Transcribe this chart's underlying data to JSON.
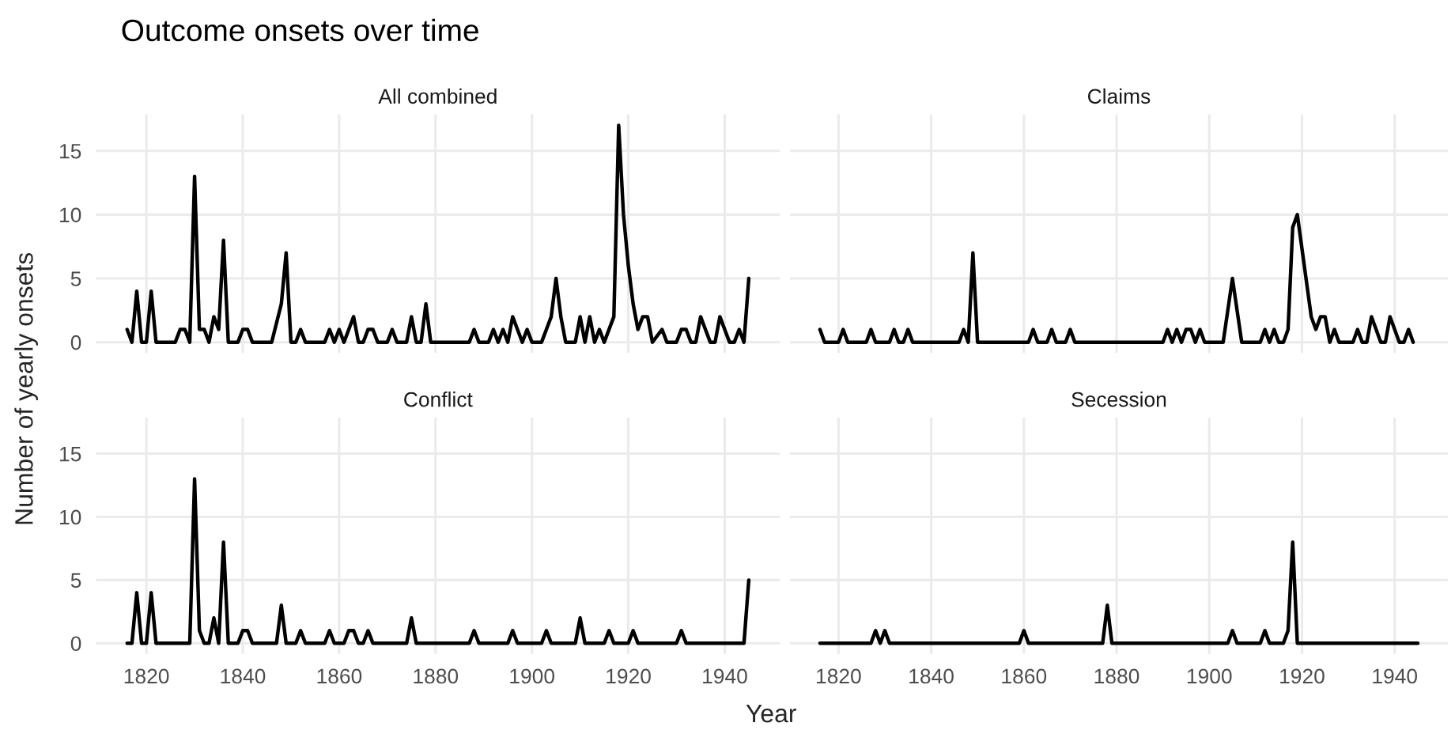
{
  "chart_data": [
    {
      "type": "line",
      "title": "Outcome onsets over time",
      "subtitle": "All combined",
      "ylabel": "Number of yearly onsets",
      "xlim": [
        1809.55,
        1951.45
      ],
      "xticks": [
        1820,
        1840,
        1860,
        1880,
        1900,
        1920,
        1940
      ],
      "ylim": [
        -0.85,
        17.85
      ],
      "yticks": [
        0,
        5,
        10,
        15
      ],
      "grid": true,
      "tick_labels": "y",
      "series": [
        {
          "color": "#000000",
          "x": [
            1816,
            1817,
            1818,
            1819,
            1820,
            1821,
            1822,
            1826,
            1827,
            1828,
            1829,
            1830,
            1831,
            1832,
            1833,
            1834,
            1835,
            1836,
            1837,
            1839,
            1840,
            1841,
            1842,
            1846,
            1848,
            1849,
            1850,
            1851,
            1852,
            1853,
            1857,
            1858,
            1859,
            1860,
            1861,
            1862,
            1863,
            1864,
            1865,
            1866,
            1867,
            1868,
            1870,
            1871,
            1872,
            1874,
            1875,
            1876,
            1877,
            1878,
            1879,
            1887,
            1888,
            1889,
            1891,
            1892,
            1893,
            1894,
            1895,
            1896,
            1897,
            1898,
            1899,
            1900,
            1902,
            1903,
            1904,
            1905,
            1906,
            1907,
            1909,
            1910,
            1911,
            1912,
            1913,
            1914,
            1915,
            1917,
            1918,
            1919,
            1920,
            1921,
            1922,
            1923,
            1924,
            1925,
            1927,
            1928,
            1930,
            1931,
            1932,
            1933,
            1934,
            1935,
            1936,
            1937,
            1938,
            1939,
            1940,
            1941,
            1942,
            1943,
            1944,
            1945
          ],
          "values": [
            1,
            0,
            4,
            0,
            0,
            4,
            0,
            0,
            1,
            1,
            0,
            13,
            1,
            1,
            0,
            2,
            1,
            8,
            0,
            0,
            1,
            1,
            0,
            0,
            3,
            7,
            0,
            0,
            1,
            0,
            0,
            1,
            0,
            1,
            0,
            1,
            2,
            0,
            0,
            1,
            1,
            0,
            0,
            1,
            0,
            0,
            2,
            0,
            0,
            3,
            0,
            0,
            1,
            0,
            0,
            1,
            0,
            1,
            0,
            2,
            1,
            0,
            1,
            0,
            0,
            1,
            2,
            5,
            2,
            0,
            0,
            2,
            0,
            2,
            0,
            1,
            0,
            2,
            17,
            10,
            6,
            3,
            1,
            2,
            2,
            0,
            1,
            0,
            0,
            1,
            1,
            0,
            0,
            2,
            1,
            0,
            0,
            2,
            1,
            0,
            0,
            1,
            0,
            5
          ]
        }
      ]
    },
    {
      "type": "line",
      "subtitle": "Claims",
      "xlim": [
        1809.55,
        1951.45
      ],
      "xticks": [
        1820,
        1840,
        1860,
        1880,
        1900,
        1920,
        1940
      ],
      "ylim": [
        -0.85,
        17.85
      ],
      "yticks": [
        0,
        5,
        10,
        15
      ],
      "grid": true,
      "tick_labels": false,
      "series": [
        {
          "color": "#000000",
          "x": [
            1816,
            1817,
            1820,
            1821,
            1822,
            1826,
            1827,
            1828,
            1831,
            1832,
            1833,
            1834,
            1835,
            1836,
            1846,
            1847,
            1848,
            1849,
            1850,
            1861,
            1862,
            1863,
            1865,
            1866,
            1867,
            1869,
            1870,
            1871,
            1890,
            1891,
            1892,
            1893,
            1894,
            1895,
            1896,
            1897,
            1898,
            1899,
            1903,
            1905,
            1907,
            1911,
            1912,
            1913,
            1914,
            1915,
            1916,
            1917,
            1918,
            1919,
            1922,
            1923,
            1924,
            1925,
            1926,
            1927,
            1928,
            1931,
            1932,
            1933,
            1934,
            1935,
            1936,
            1937,
            1938,
            1939,
            1940,
            1941,
            1942,
            1943,
            1944
          ],
          "values": [
            1,
            0,
            0,
            1,
            0,
            0,
            1,
            0,
            0,
            1,
            0,
            0,
            1,
            0,
            0,
            1,
            0,
            7,
            0,
            0,
            1,
            0,
            0,
            1,
            0,
            0,
            1,
            0,
            0,
            1,
            0,
            1,
            0,
            1,
            1,
            0,
            1,
            0,
            0,
            5,
            0,
            0,
            1,
            0,
            1,
            0,
            0,
            1,
            9,
            10,
            2,
            1,
            2,
            2,
            0,
            1,
            0,
            0,
            1,
            0,
            0,
            2,
            1,
            0,
            0,
            2,
            1,
            0,
            0,
            1,
            0
          ]
        }
      ]
    },
    {
      "type": "line",
      "subtitle": "Conflict",
      "xlabel": "Year",
      "xlim": [
        1809.55,
        1951.45
      ],
      "xticks": [
        1820,
        1840,
        1860,
        1880,
        1900,
        1920,
        1940
      ],
      "ylim": [
        -0.85,
        17.85
      ],
      "yticks": [
        0,
        5,
        10,
        15
      ],
      "grid": true,
      "series": [
        {
          "color": "#000000",
          "x": [
            1816,
            1817,
            1818,
            1819,
            1820,
            1821,
            1822,
            1829,
            1830,
            1831,
            1832,
            1833,
            1834,
            1835,
            1836,
            1837,
            1839,
            1840,
            1841,
            1842,
            1847,
            1848,
            1849,
            1851,
            1852,
            1853,
            1857,
            1858,
            1859,
            1861,
            1862,
            1863,
            1864,
            1865,
            1866,
            1867,
            1874,
            1875,
            1876,
            1887,
            1888,
            1889,
            1895,
            1896,
            1897,
            1902,
            1903,
            1904,
            1909,
            1910,
            1911,
            1915,
            1916,
            1917,
            1920,
            1921,
            1922,
            1930,
            1931,
            1932,
            1944,
            1945
          ],
          "values": [
            0,
            0,
            4,
            0,
            0,
            4,
            0,
            0,
            13,
            1,
            0,
            0,
            2,
            0,
            8,
            0,
            0,
            1,
            1,
            0,
            0,
            3,
            0,
            0,
            1,
            0,
            0,
            1,
            0,
            0,
            1,
            1,
            0,
            0,
            1,
            0,
            0,
            2,
            0,
            0,
            1,
            0,
            0,
            1,
            0,
            0,
            1,
            0,
            0,
            2,
            0,
            0,
            1,
            0,
            0,
            1,
            0,
            0,
            1,
            0,
            0,
            5
          ]
        }
      ]
    },
    {
      "type": "line",
      "subtitle": "Secession",
      "xlim": [
        1809.55,
        1951.45
      ],
      "xticks": [
        1820,
        1840,
        1860,
        1880,
        1900,
        1920,
        1940
      ],
      "ylim": [
        -0.85,
        17.85
      ],
      "yticks": [
        0,
        5,
        10,
        15
      ],
      "grid": true,
      "tick_labels": "x",
      "series": [
        {
          "color": "#000000",
          "x": [
            1816,
            1827,
            1828,
            1829,
            1830,
            1831,
            1859,
            1860,
            1861,
            1877,
            1878,
            1879,
            1904,
            1905,
            1906,
            1911,
            1912,
            1913,
            1916,
            1917,
            1918,
            1919,
            1945
          ],
          "values": [
            0,
            0,
            1,
            0,
            1,
            0,
            0,
            1,
            0,
            0,
            3,
            0,
            0,
            1,
            0,
            0,
            1,
            0,
            0,
            1,
            8,
            0,
            0
          ]
        }
      ]
    }
  ]
}
